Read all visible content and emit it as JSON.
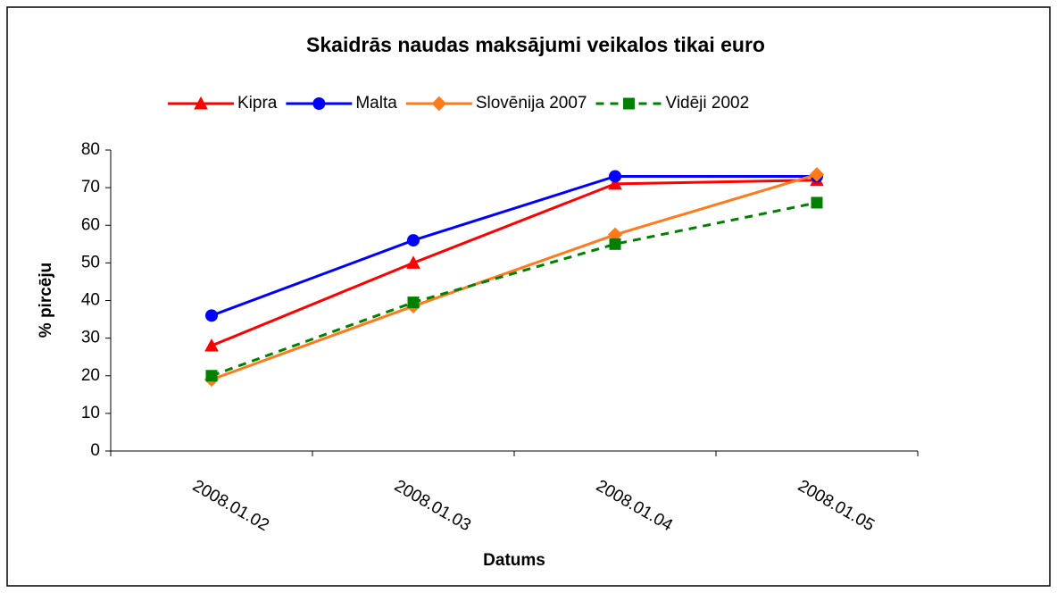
{
  "chart_data": {
    "type": "line",
    "title": "Skaidrās naudas maksājumi veikalos tikai euro",
    "xlabel": "Datums",
    "ylabel": "% pircēju",
    "categories": [
      "2008.01.02",
      "2008.01.03",
      "2008.01.04",
      "2008.01.05"
    ],
    "series": [
      {
        "name": "Kipra",
        "color": "#ff0000",
        "marker": "triangle",
        "dashed": false,
        "values": [
          28,
          50,
          71,
          72
        ]
      },
      {
        "name": "Malta",
        "color": "#0000ff",
        "marker": "circle",
        "dashed": false,
        "values": [
          36,
          56,
          73,
          73
        ]
      },
      {
        "name": "Slovēnija 2007",
        "color": "#ff7a1a",
        "marker": "diamond",
        "dashed": false,
        "values": [
          19,
          38.5,
          57.5,
          73.5
        ]
      },
      {
        "name": "Vidēji 2002",
        "color": "#008000",
        "marker": "square",
        "dashed": true,
        "values": [
          20,
          39.5,
          55,
          66
        ]
      }
    ],
    "ylim": [
      0,
      80
    ],
    "yticks": [
      0,
      10,
      20,
      30,
      40,
      50,
      60,
      70,
      80
    ],
    "grid": false,
    "legend": "top"
  }
}
